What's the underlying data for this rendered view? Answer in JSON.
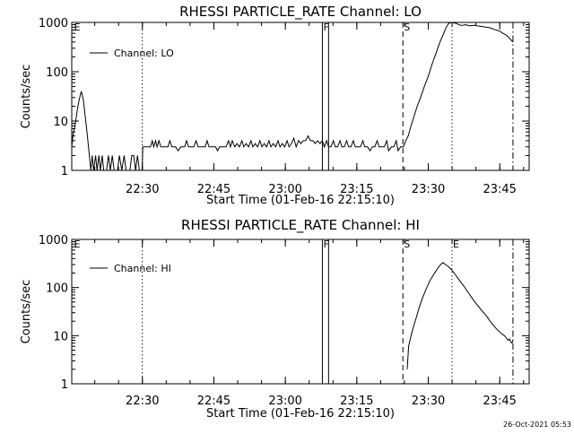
{
  "timestamp": "26-Oct-2021 05:53",
  "chart_data": [
    {
      "type": "line",
      "title": "RHESSI PARTICLE_RATE Channel: LO",
      "xlabel": "Start Time (01-Feb-16 22:15:10)",
      "ylabel": "Counts/sec",
      "y_scale": "log",
      "ylim": [
        1,
        1000
      ],
      "xlim_minutes": [
        0,
        96
      ],
      "x_ticks": [
        {
          "label": "22:30",
          "minutes": 14.83
        },
        {
          "label": "22:45",
          "minutes": 29.83
        },
        {
          "label": "23:00",
          "minutes": 44.83
        },
        {
          "label": "23:15",
          "minutes": 59.83
        },
        {
          "label": "23:30",
          "minutes": 74.83
        },
        {
          "label": "23:45",
          "minutes": 89.83
        }
      ],
      "y_ticks": [
        {
          "label": "1",
          "value": 1
        },
        {
          "label": "10",
          "value": 10
        },
        {
          "label": "100",
          "value": 100
        },
        {
          "label": "1000",
          "value": 1000
        }
      ],
      "legend": {
        "entry": "Channel: LO",
        "position": "top-left"
      },
      "markers": [
        {
          "label": "E",
          "minutes": 0.3,
          "style": "dotted",
          "label_only": true
        },
        {
          "label": "",
          "minutes": 14.8,
          "style": "dotted"
        },
        {
          "label": "F",
          "minutes": 52.6,
          "style": "solid"
        },
        {
          "label": "",
          "minutes": 53.9,
          "style": "solid"
        },
        {
          "label": "S",
          "minutes": 69.5,
          "style": "dashed"
        },
        {
          "label": "",
          "minutes": 79.8,
          "style": "dotted"
        },
        {
          "label": "",
          "minutes": 92.6,
          "style": "dashdot"
        }
      ],
      "series": [
        {
          "name": "Channel: LO",
          "points": [
            [
              0.0,
              3.0
            ],
            [
              0.3,
              5.5
            ],
            [
              0.7,
              8.0
            ],
            [
              1.2,
              18.0
            ],
            [
              1.6,
              28.0
            ],
            [
              2.0,
              40.0
            ],
            [
              2.4,
              28.0
            ],
            [
              2.8,
              13.0
            ],
            [
              3.2,
              6.0
            ],
            [
              3.6,
              2.5
            ],
            [
              4.0,
              1.0
            ],
            [
              4.3,
              2.0
            ],
            [
              4.6,
              1.0
            ],
            [
              5.0,
              2.0
            ],
            [
              5.3,
              1.0
            ],
            [
              5.7,
              2.0
            ],
            [
              6.0,
              1.0
            ],
            [
              6.4,
              2.0
            ],
            [
              6.7,
              1.0
            ],
            [
              7.3,
              1.0
            ],
            [
              7.7,
              2.0
            ],
            [
              8.1,
              1.0
            ],
            [
              8.5,
              2.0
            ],
            [
              8.9,
              1.0
            ],
            [
              9.6,
              1.0
            ],
            [
              10.0,
              2.0
            ],
            [
              10.5,
              1.0
            ],
            [
              11.0,
              2.0
            ],
            [
              11.4,
              1.0
            ],
            [
              12.2,
              1.0
            ],
            [
              12.6,
              2.0
            ],
            [
              13.0,
              2.0
            ],
            [
              13.4,
              1.0
            ],
            [
              13.8,
              2.0
            ],
            [
              14.2,
              1.0
            ],
            [
              14.8,
              1.0
            ],
            [
              14.9,
              3.0
            ],
            [
              15.8,
              3.0
            ],
            [
              16.5,
              3.0
            ],
            [
              16.9,
              4.0
            ],
            [
              17.2,
              3.0
            ],
            [
              17.6,
              4.0
            ],
            [
              17.9,
              3.0
            ],
            [
              18.3,
              4.0
            ],
            [
              18.7,
              3.0
            ],
            [
              19.5,
              3.0
            ],
            [
              20.2,
              3.0
            ],
            [
              20.6,
              4.0
            ],
            [
              21.0,
              3.0
            ],
            [
              21.8,
              3.0
            ],
            [
              22.3,
              2.5
            ],
            [
              22.9,
              3.0
            ],
            [
              23.7,
              3.0
            ],
            [
              24.1,
              4.0
            ],
            [
              24.5,
              3.0
            ],
            [
              25.1,
              3.0
            ],
            [
              25.6,
              3.0
            ],
            [
              26.1,
              4.0
            ],
            [
              26.5,
              3.0
            ],
            [
              27.3,
              3.0
            ],
            [
              28.0,
              3.0
            ],
            [
              28.4,
              4.0
            ],
            [
              28.8,
              3.0
            ],
            [
              29.6,
              3.0
            ],
            [
              30.2,
              3.0
            ],
            [
              30.6,
              2.5
            ],
            [
              31.0,
              3.0
            ],
            [
              31.8,
              3.0
            ],
            [
              32.4,
              3.0
            ],
            [
              32.9,
              4.0
            ],
            [
              33.3,
              3.0
            ],
            [
              33.7,
              4.0
            ],
            [
              34.2,
              3.0
            ],
            [
              34.7,
              3.5
            ],
            [
              35.2,
              3.0
            ],
            [
              35.7,
              4.0
            ],
            [
              36.1,
              3.0
            ],
            [
              36.6,
              3.5
            ],
            [
              37.1,
              3.0
            ],
            [
              37.6,
              4.0
            ],
            [
              38.0,
              3.0
            ],
            [
              38.5,
              3.5
            ],
            [
              39.0,
              3.0
            ],
            [
              39.5,
              4.0
            ],
            [
              39.9,
              3.0
            ],
            [
              40.4,
              3.5
            ],
            [
              40.9,
              3.0
            ],
            [
              41.4,
              4.0
            ],
            [
              41.8,
              3.0
            ],
            [
              42.3,
              3.5
            ],
            [
              42.8,
              3.0
            ],
            [
              43.3,
              4.0
            ],
            [
              43.7,
              3.0
            ],
            [
              44.2,
              3.5
            ],
            [
              44.7,
              3.0
            ],
            [
              45.2,
              4.0
            ],
            [
              45.6,
              3.0
            ],
            [
              46.1,
              3.5
            ],
            [
              46.6,
              4.5
            ],
            [
              47.1,
              3.0
            ],
            [
              47.6,
              4.0
            ],
            [
              48.1,
              3.5
            ],
            [
              48.6,
              4.0
            ],
            [
              49.1,
              4.0
            ],
            [
              49.6,
              5.0
            ],
            [
              50.1,
              4.0
            ],
            [
              50.6,
              4.0
            ],
            [
              51.1,
              3.5
            ],
            [
              51.6,
              4.0
            ],
            [
              52.1,
              3.5
            ],
            [
              52.6,
              4.0
            ],
            [
              53.0,
              3.0
            ],
            [
              53.5,
              4.0
            ],
            [
              53.9,
              3.0
            ],
            [
              54.4,
              3.0
            ],
            [
              54.9,
              4.0
            ],
            [
              55.3,
              3.0
            ],
            [
              55.8,
              3.0
            ],
            [
              56.3,
              4.0
            ],
            [
              56.7,
              3.0
            ],
            [
              57.2,
              3.0
            ],
            [
              57.7,
              4.0
            ],
            [
              58.1,
              3.0
            ],
            [
              58.6,
              3.0
            ],
            [
              59.1,
              4.0
            ],
            [
              59.5,
              3.0
            ],
            [
              60.1,
              3.0
            ],
            [
              60.6,
              3.0
            ],
            [
              61.1,
              4.0
            ],
            [
              61.5,
              3.0
            ],
            [
              62.1,
              3.0
            ],
            [
              62.6,
              2.5
            ],
            [
              63.1,
              3.0
            ],
            [
              63.6,
              3.0
            ],
            [
              64.1,
              4.0
            ],
            [
              64.5,
              3.0
            ],
            [
              65.1,
              3.0
            ],
            [
              65.6,
              3.0
            ],
            [
              66.1,
              4.0
            ],
            [
              66.5,
              2.5
            ],
            [
              67.1,
              3.0
            ],
            [
              67.6,
              3.0
            ],
            [
              68.1,
              4.0
            ],
            [
              68.5,
              2.5
            ],
            [
              69.0,
              3.0
            ],
            [
              69.6,
              3.0
            ],
            [
              70.1,
              4.0
            ],
            [
              70.6,
              5.0
            ],
            [
              71.2,
              8.0
            ],
            [
              71.8,
              12.0
            ],
            [
              72.5,
              20.0
            ],
            [
              73.2,
              30.0
            ],
            [
              74.0,
              50.0
            ],
            [
              74.8,
              80.0
            ],
            [
              75.6,
              140.0
            ],
            [
              76.4,
              230.0
            ],
            [
              77.2,
              380.0
            ],
            [
              78.0,
              580.0
            ],
            [
              78.6,
              800.0
            ],
            [
              79.1,
              950.0
            ],
            [
              79.6,
              1000.0
            ],
            [
              80.2,
              980.0
            ],
            [
              80.7,
              960.0
            ],
            [
              81.2,
              900.0
            ],
            [
              81.7,
              870.0
            ],
            [
              82.2,
              880.0
            ],
            [
              82.7,
              900.0
            ],
            [
              83.3,
              860.0
            ],
            [
              83.9,
              860.0
            ],
            [
              84.5,
              880.0
            ],
            [
              85.1,
              850.0
            ],
            [
              85.7,
              840.0
            ],
            [
              86.3,
              820.0
            ],
            [
              86.9,
              800.0
            ],
            [
              87.5,
              790.0
            ],
            [
              88.1,
              760.0
            ],
            [
              88.7,
              720.0
            ],
            [
              89.3,
              690.0
            ],
            [
              89.9,
              660.0
            ],
            [
              90.5,
              600.0
            ],
            [
              91.1,
              560.0
            ],
            [
              91.7,
              500.0
            ],
            [
              92.3,
              430.0
            ],
            [
              92.6,
              400.0
            ]
          ]
        }
      ]
    },
    {
      "type": "line",
      "title": "RHESSI PARTICLE_RATE Channel: HI",
      "xlabel": "Start Time (01-Feb-16 22:15:10)",
      "ylabel": "Counts/sec",
      "y_scale": "log",
      "ylim": [
        1,
        1000
      ],
      "xlim_minutes": [
        0,
        96
      ],
      "x_ticks": [
        {
          "label": "22:30",
          "minutes": 14.83
        },
        {
          "label": "22:45",
          "minutes": 29.83
        },
        {
          "label": "23:00",
          "minutes": 44.83
        },
        {
          "label": "23:15",
          "minutes": 59.83
        },
        {
          "label": "23:30",
          "minutes": 74.83
        },
        {
          "label": "23:45",
          "minutes": 89.83
        }
      ],
      "y_ticks": [
        {
          "label": "1",
          "value": 1
        },
        {
          "label": "10",
          "value": 10
        },
        {
          "label": "100",
          "value": 100
        },
        {
          "label": "1000",
          "value": 1000
        }
      ],
      "legend": {
        "entry": "Channel: HI",
        "position": "top-left"
      },
      "markers": [
        {
          "label": "E",
          "minutes": 0.3,
          "style": "dotted",
          "label_only": true
        },
        {
          "label": "",
          "minutes": 14.8,
          "style": "dotted"
        },
        {
          "label": "F",
          "minutes": 52.6,
          "style": "solid"
        },
        {
          "label": "",
          "minutes": 53.9,
          "style": "solid"
        },
        {
          "label": "S",
          "minutes": 69.5,
          "style": "dashed"
        },
        {
          "label": "E",
          "minutes": 79.8,
          "style": "dotted"
        },
        {
          "label": "",
          "minutes": 92.6,
          "style": "dashdot"
        }
      ],
      "series": [
        {
          "name": "Channel: HI",
          "points": [
            [
              70.4,
              2.0
            ],
            [
              70.7,
              6.0
            ],
            [
              71.1,
              9.0
            ],
            [
              71.6,
              14.0
            ],
            [
              72.2,
              22.0
            ],
            [
              72.9,
              38.0
            ],
            [
              73.6,
              60.0
            ],
            [
              74.4,
              95.0
            ],
            [
              75.2,
              140.0
            ],
            [
              76.0,
              190.0
            ],
            [
              76.8,
              250.0
            ],
            [
              77.4,
              300.0
            ],
            [
              77.9,
              330.0
            ],
            [
              78.5,
              300.0
            ],
            [
              79.1,
              270.0
            ],
            [
              79.8,
              230.0
            ],
            [
              80.6,
              180.0
            ],
            [
              81.4,
              140.0
            ],
            [
              82.2,
              110.0
            ],
            [
              83.0,
              85.0
            ],
            [
              83.8,
              65.0
            ],
            [
              84.6,
              50.0
            ],
            [
              85.4,
              40.0
            ],
            [
              86.2,
              32.0
            ],
            [
              87.0,
              26.0
            ],
            [
              87.8,
              20.0
            ],
            [
              88.6,
              16.0
            ],
            [
              89.4,
              13.0
            ],
            [
              90.2,
              11.0
            ],
            [
              90.8,
              10.0
            ],
            [
              91.2,
              9.0
            ],
            [
              91.6,
              8.0
            ],
            [
              91.9,
              8.5
            ],
            [
              92.1,
              7.5
            ],
            [
              92.4,
              7.0
            ],
            [
              92.6,
              8.0
            ]
          ]
        }
      ]
    }
  ]
}
